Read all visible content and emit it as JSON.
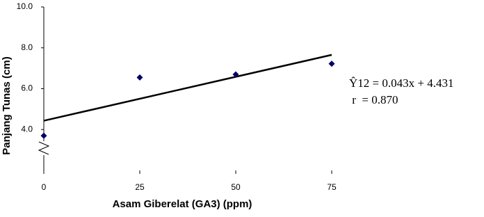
{
  "chart_data": {
    "type": "scatter",
    "x_label": "Asam Giberelat (GA3) (ppm)",
    "y_label": "Panjang Tunas (cm)",
    "x": [
      0,
      25,
      50,
      75
    ],
    "values": [
      3.7,
      6.55,
      6.7,
      7.22
    ],
    "color": "#000066",
    "trendline": {
      "slope": 0.043,
      "intercept": 4.431,
      "color": "#000000"
    },
    "annotations": [
      "Ŷ12 = 0.043x + 4.431",
      " r  = 0.870"
    ],
    "xlim": [
      0,
      75
    ],
    "xticks": [
      0,
      25,
      50,
      75
    ],
    "ylim": [
      2,
      10
    ],
    "yticks": [
      {
        "value": 4,
        "label": "4.0"
      },
      {
        "value": 6,
        "label": "6.0"
      },
      {
        "value": 8,
        "label": "8.0"
      },
      {
        "value": 10,
        "label": "10.0"
      }
    ],
    "grid": false
  }
}
